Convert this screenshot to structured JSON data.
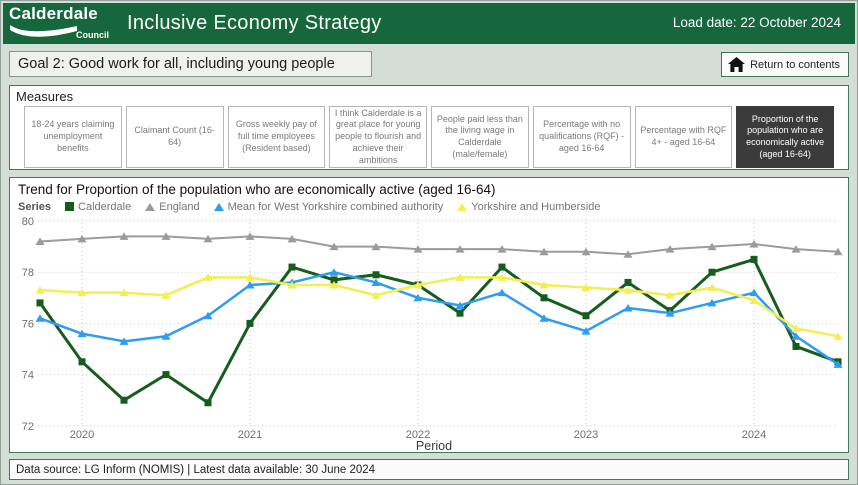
{
  "header": {
    "logo_line1": "Calderdale",
    "logo_line2": "Council",
    "title": "Inclusive Economy Strategy",
    "load_date": "Load date: 22 October 2024",
    "bg_color": "#17673d"
  },
  "goal_bar": {
    "label": "Goal 2: Good work for all, including young people",
    "return_button_label": "Return to contents"
  },
  "measures": {
    "title": "Measures",
    "tabs": [
      {
        "label": "18-24 years claiming unemployment benefits",
        "selected": false
      },
      {
        "label": "Claimant Count (16-64)",
        "selected": false
      },
      {
        "label": "Gross weekly pay of full time employees (Resident based)",
        "selected": false
      },
      {
        "label": "I think Calderdale is a great place for young people to flourish and achieve their ambitions",
        "selected": false
      },
      {
        "label": "People paid less than the living wage in Calderdale (male/female)",
        "selected": false
      },
      {
        "label": "Percentage with no qualifications (RQF) - aged 16-64",
        "selected": false
      },
      {
        "label": "Percentage with RQF 4+ - aged 16-64",
        "selected": false
      },
      {
        "label": "Proportion of the population who are economically active (aged 16-64)",
        "selected": true
      }
    ],
    "selected_tab_bg": "#3b3b3b"
  },
  "chart": {
    "title": "Trend for Proportion of the population who are economically active (aged 16-64)",
    "legend_label": "Series"
  },
  "chart_data": {
    "type": "line",
    "title": "Trend for Proportion of the population who are economically active (aged 16-64)",
    "xlabel": "Period",
    "ylabel": "",
    "ylim": [
      72,
      80
    ],
    "yticks": [
      72,
      74,
      76,
      78,
      80
    ],
    "x_tick_labels": [
      "2020",
      "2021",
      "2022",
      "2023",
      "2024"
    ],
    "x_tick_indices": [
      1,
      5,
      9,
      13,
      17
    ],
    "n_points": 20,
    "grid": "dotted",
    "legend_position": "top",
    "series": [
      {
        "name": "Calderdale",
        "color": "#155c1d",
        "marker": "square",
        "line_width": 3,
        "values": [
          76.8,
          74.5,
          73.0,
          74.0,
          72.9,
          76.0,
          78.2,
          77.7,
          77.9,
          77.5,
          76.4,
          78.2,
          77.0,
          76.3,
          77.6,
          76.5,
          78.0,
          78.5,
          75.1,
          74.5
        ]
      },
      {
        "name": "England",
        "color": "#9b9b9b",
        "marker": "triangle",
        "line_width": 2,
        "values": [
          79.2,
          79.3,
          79.4,
          79.4,
          79.3,
          79.4,
          79.3,
          79.0,
          79.0,
          78.9,
          78.9,
          78.9,
          78.8,
          78.8,
          78.7,
          78.9,
          79.0,
          79.1,
          78.9,
          78.8
        ]
      },
      {
        "name": "Mean for West Yorkshire combined authority",
        "color": "#2f9bf2",
        "marker": "triangle",
        "line_width": 2.5,
        "values": [
          76.2,
          75.6,
          75.3,
          75.5,
          76.3,
          77.5,
          77.6,
          78.0,
          77.6,
          77.0,
          76.7,
          77.2,
          76.2,
          75.7,
          76.6,
          76.4,
          76.8,
          77.2,
          75.5,
          74.4
        ]
      },
      {
        "name": "Yorkshire and Humberside",
        "color": "#f3ee52",
        "marker": "triangle",
        "line_width": 2.5,
        "values": [
          77.3,
          77.2,
          77.2,
          77.1,
          77.8,
          77.8,
          77.5,
          77.5,
          77.1,
          77.5,
          77.8,
          77.8,
          77.5,
          77.4,
          77.3,
          77.1,
          77.4,
          76.9,
          75.8,
          75.5
        ]
      }
    ]
  },
  "footer": {
    "text": "Data source: LG Inform (NOMIS) | Latest data available: 30 June 2024"
  }
}
